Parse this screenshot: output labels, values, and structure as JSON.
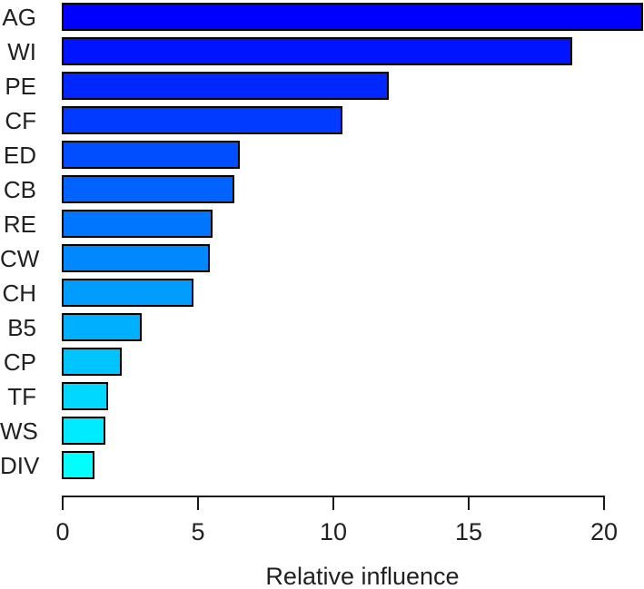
{
  "chart_data": {
    "type": "bar",
    "orientation": "horizontal",
    "title": "",
    "xlabel": "Relative influence",
    "ylabel": "",
    "categories": [
      "AG",
      "WI",
      "PE",
      "CF",
      "ED",
      "CB",
      "RE",
      "CW",
      "CH",
      "B5",
      "CP",
      "TF",
      "WS",
      "DIV"
    ],
    "values": [
      21.4,
      18.8,
      12.0,
      10.3,
      6.5,
      6.3,
      5.5,
      5.4,
      4.8,
      2.9,
      2.15,
      1.65,
      1.55,
      1.15
    ],
    "bar_colors": [
      "#0000FF",
      "#0014FF",
      "#0027FF",
      "#003BFF",
      "#004EFF",
      "#0062FF",
      "#0076FF",
      "#0089FF",
      "#009DFF",
      "#00B0FF",
      "#00C4FF",
      "#00D8FF",
      "#00EBFF",
      "#00FFFF"
    ],
    "bar_border_color": "#000000",
    "x_ticks": [
      "0",
      "5",
      "10",
      "15",
      "20"
    ],
    "x_tick_values": [
      0,
      5,
      10,
      15,
      20
    ],
    "xlim": [
      0,
      21.5
    ],
    "grid": false,
    "legend": null,
    "background_color": "#FFFFFF",
    "text_color": "#212121"
  }
}
